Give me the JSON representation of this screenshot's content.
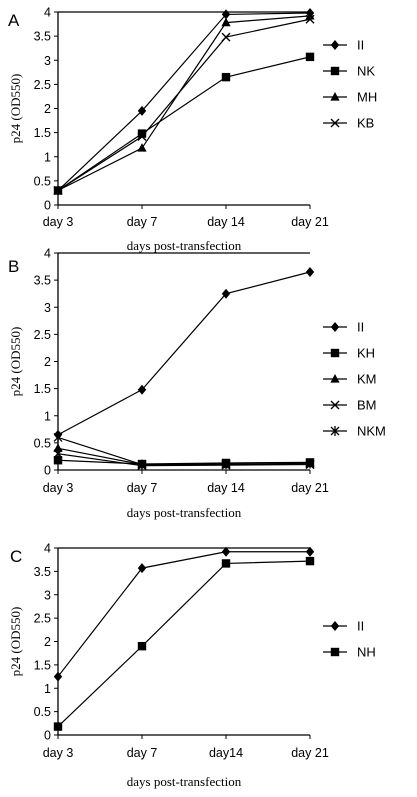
{
  "chart_data": [
    {
      "type": "line",
      "panel_label": "A",
      "categories": [
        "day 3",
        "day 7",
        "day 14",
        "day 21"
      ],
      "ylim": [
        0,
        4
      ],
      "yticks": [
        "0",
        "0.5",
        "1",
        "1.5",
        "2",
        "2.5",
        "3",
        "3.5",
        "4"
      ],
      "xlabel": "days post-transfection",
      "ylabel": "p24 (OD550)",
      "legend_position": "right",
      "series": [
        {
          "name": "II",
          "marker": "diamond",
          "values": [
            0.3,
            1.95,
            3.95,
            3.98
          ]
        },
        {
          "name": "NK",
          "marker": "square",
          "values": [
            0.3,
            1.48,
            2.65,
            3.07
          ]
        },
        {
          "name": "MH",
          "marker": "triangle",
          "values": [
            0.3,
            1.18,
            3.78,
            3.92
          ]
        },
        {
          "name": "KB",
          "marker": "x",
          "values": [
            0.3,
            1.42,
            3.48,
            3.85
          ]
        }
      ]
    },
    {
      "type": "line",
      "panel_label": "B",
      "categories": [
        "day 3",
        "day 7",
        "day 14",
        "day 21"
      ],
      "ylim": [
        0,
        4
      ],
      "yticks": [
        "0",
        "0.5",
        "1",
        "1.5",
        "2",
        "2.5",
        "3",
        "3.5",
        "4"
      ],
      "xlabel": "days post-transfection",
      "ylabel": "p24 (OD550)",
      "legend_position": "right",
      "series": [
        {
          "name": "II",
          "marker": "diamond",
          "values": [
            0.65,
            1.48,
            3.25,
            3.65
          ]
        },
        {
          "name": "KH",
          "marker": "square",
          "values": [
            0.18,
            0.11,
            0.13,
            0.14
          ]
        },
        {
          "name": "KM",
          "marker": "triangle",
          "values": [
            0.4,
            0.1,
            0.1,
            0.12
          ]
        },
        {
          "name": "BM",
          "marker": "x",
          "values": [
            0.3,
            0.08,
            0.09,
            0.1
          ]
        },
        {
          "name": "NKM",
          "marker": "star",
          "values": [
            0.6,
            0.1,
            0.11,
            0.12
          ]
        }
      ]
    },
    {
      "type": "line",
      "panel_label": "C",
      "categories": [
        "day 3",
        "day 7",
        "day14",
        "day 21"
      ],
      "ylim": [
        0,
        4
      ],
      "yticks": [
        "0",
        "0.5",
        "1",
        "1.5",
        "2",
        "2.5",
        "3",
        "3.5",
        "4"
      ],
      "xlabel": "days post-transfection",
      "ylabel": "p24 (OD550)",
      "legend_position": "right",
      "series": [
        {
          "name": "II",
          "marker": "diamond",
          "values": [
            1.25,
            3.57,
            3.92,
            3.92
          ]
        },
        {
          "name": "NH",
          "marker": "square",
          "values": [
            0.18,
            1.9,
            3.67,
            3.72
          ]
        }
      ]
    }
  ]
}
